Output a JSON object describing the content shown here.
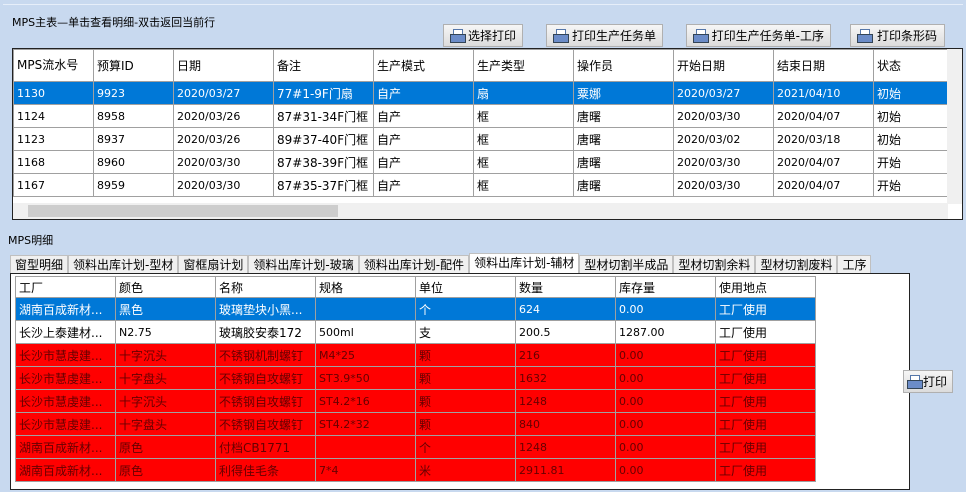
{
  "top": {
    "title": "MPS主表—单击查看明细-双击返回当前行",
    "buttons": [
      "选择打印",
      "打印生产任务单",
      "打印生产任务单-工序",
      "打印条形码"
    ],
    "columns": [
      "MPS流水号",
      "预算ID",
      "日期",
      "备注",
      "生产模式",
      "生产类型",
      "操作员",
      "开始日期",
      "结束日期",
      "状态"
    ],
    "rows": [
      [
        "1130",
        "9923",
        "2020/03/27",
        "77#1-9F门扇",
        "自产",
        "扇",
        "粟娜",
        "2020/03/27",
        "2021/04/10",
        "初始"
      ],
      [
        "1124",
        "8958",
        "2020/03/26",
        "87#31-34F门框",
        "自产",
        "框",
        "唐曙",
        "2020/03/30",
        "2020/04/07",
        "初始"
      ],
      [
        "1123",
        "8937",
        "2020/03/26",
        "89#37-40F门框",
        "自产",
        "框",
        "唐曙",
        "2020/03/02",
        "2020/03/18",
        "初始"
      ],
      [
        "1168",
        "8960",
        "2020/03/30",
        "87#38-39F门框",
        "自产",
        "框",
        "唐曙",
        "2020/03/30",
        "2020/04/07",
        "开始"
      ],
      [
        "1167",
        "8959",
        "2020/03/30",
        "87#35-37F门框",
        "自产",
        "框",
        "唐曙",
        "2020/03/30",
        "2020/04/07",
        "开始"
      ]
    ],
    "selected_row": 0
  },
  "detail": {
    "title": "MPS明细",
    "tabs": [
      "窗型明细",
      "领料出库计划-型材",
      "窗框扇计划",
      "领料出库计划-玻璃",
      "领料出库计划-配件",
      "领料出库计划-辅材",
      "型材切割半成品",
      "型材切割余料",
      "型材切割废料",
      "工序"
    ],
    "active_tab": 5,
    "columns": [
      "工厂",
      "颜色",
      "名称",
      "规格",
      "单位",
      "数量",
      "库存量",
      "使用地点"
    ],
    "rows": [
      [
        "湖南百成新材...",
        "黑色",
        "玻璃垫块小黑...",
        "",
        "个",
        "624",
        "0.00",
        "工厂使用"
      ],
      [
        "长沙上泰建材...",
        "N2.75",
        "玻璃胶安泰172",
        "500ml",
        "支",
        "200.5",
        "1287.00",
        "工厂使用"
      ],
      [
        "长沙市慧虔建...",
        "十字沉头",
        "不锈钢机制螺钉",
        "M4*25",
        "颗",
        "216",
        "0.00",
        "工厂使用"
      ],
      [
        "长沙市慧虔建...",
        "十字盘头",
        "不锈钢自攻螺钉",
        "ST3.9*50",
        "颗",
        "1632",
        "0.00",
        "工厂使用"
      ],
      [
        "长沙市慧虔建...",
        "十字沉头",
        "不锈钢自攻螺钉",
        "ST4.2*16",
        "颗",
        "1248",
        "0.00",
        "工厂使用"
      ],
      [
        "长沙市慧虔建...",
        "十字盘头",
        "不锈钢自攻螺钉",
        "ST4.2*32",
        "颗",
        "840",
        "0.00",
        "工厂使用"
      ],
      [
        "湖南百成新材...",
        "原色",
        "付档CB1771",
        "",
        "个",
        "1248",
        "0.00",
        "工厂使用"
      ],
      [
        "湖南百成新材...",
        "原色",
        "利得佳毛条",
        "7*4",
        "米",
        "2911.81",
        "0.00",
        "工厂使用"
      ]
    ],
    "row_styles": [
      "selected",
      "normal",
      "red",
      "red",
      "red",
      "red",
      "red",
      "red"
    ],
    "print_button": "打印"
  },
  "colors": {
    "selection": "#0078d7",
    "alert_row": "#ff0000",
    "background": "#c8d9ef"
  }
}
